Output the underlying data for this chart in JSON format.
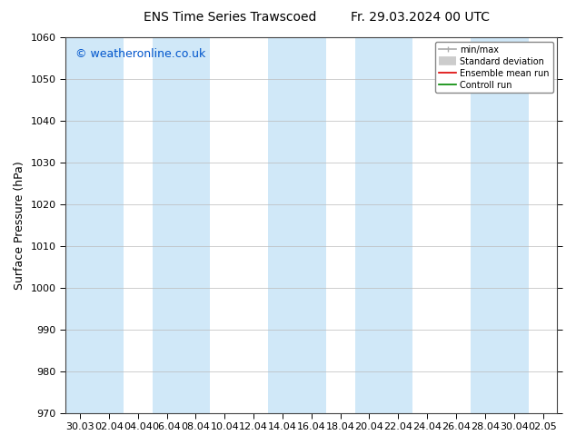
{
  "title_left": "ENS Time Series Trawscoed",
  "title_right": "Fr. 29.03.2024 00 UTC",
  "ylabel": "Surface Pressure (hPa)",
  "ylim": [
    970,
    1060
  ],
  "yticks": [
    970,
    980,
    990,
    1000,
    1010,
    1020,
    1030,
    1040,
    1050,
    1060
  ],
  "xlabel_dates": [
    "30.03",
    "02.04",
    "04.04",
    "06.04",
    "08.04",
    "10.04",
    "12.04",
    "14.04",
    "16.04",
    "18.04",
    "20.04",
    "22.04",
    "24.04",
    "26.04",
    "28.04",
    "30.04",
    "02.05"
  ],
  "watermark": "© weatheronline.co.uk",
  "watermark_color": "#0055cc",
  "background_color": "#ffffff",
  "plot_bg_color": "#ffffff",
  "band_color": "#d0e8f8",
  "legend_items": [
    {
      "label": "min/max",
      "color": "#aaaaaa",
      "lw": 1.2
    },
    {
      "label": "Standard deviation",
      "color": "#cccccc",
      "lw": 7
    },
    {
      "label": "Ensemble mean run",
      "color": "#dd0000",
      "lw": 1.2
    },
    {
      "label": "Controll run",
      "color": "#008800",
      "lw": 1.2
    }
  ],
  "title_fontsize": 10,
  "ylabel_fontsize": 9,
  "tick_fontsize": 8,
  "watermark_fontsize": 9,
  "legend_fontsize": 7
}
